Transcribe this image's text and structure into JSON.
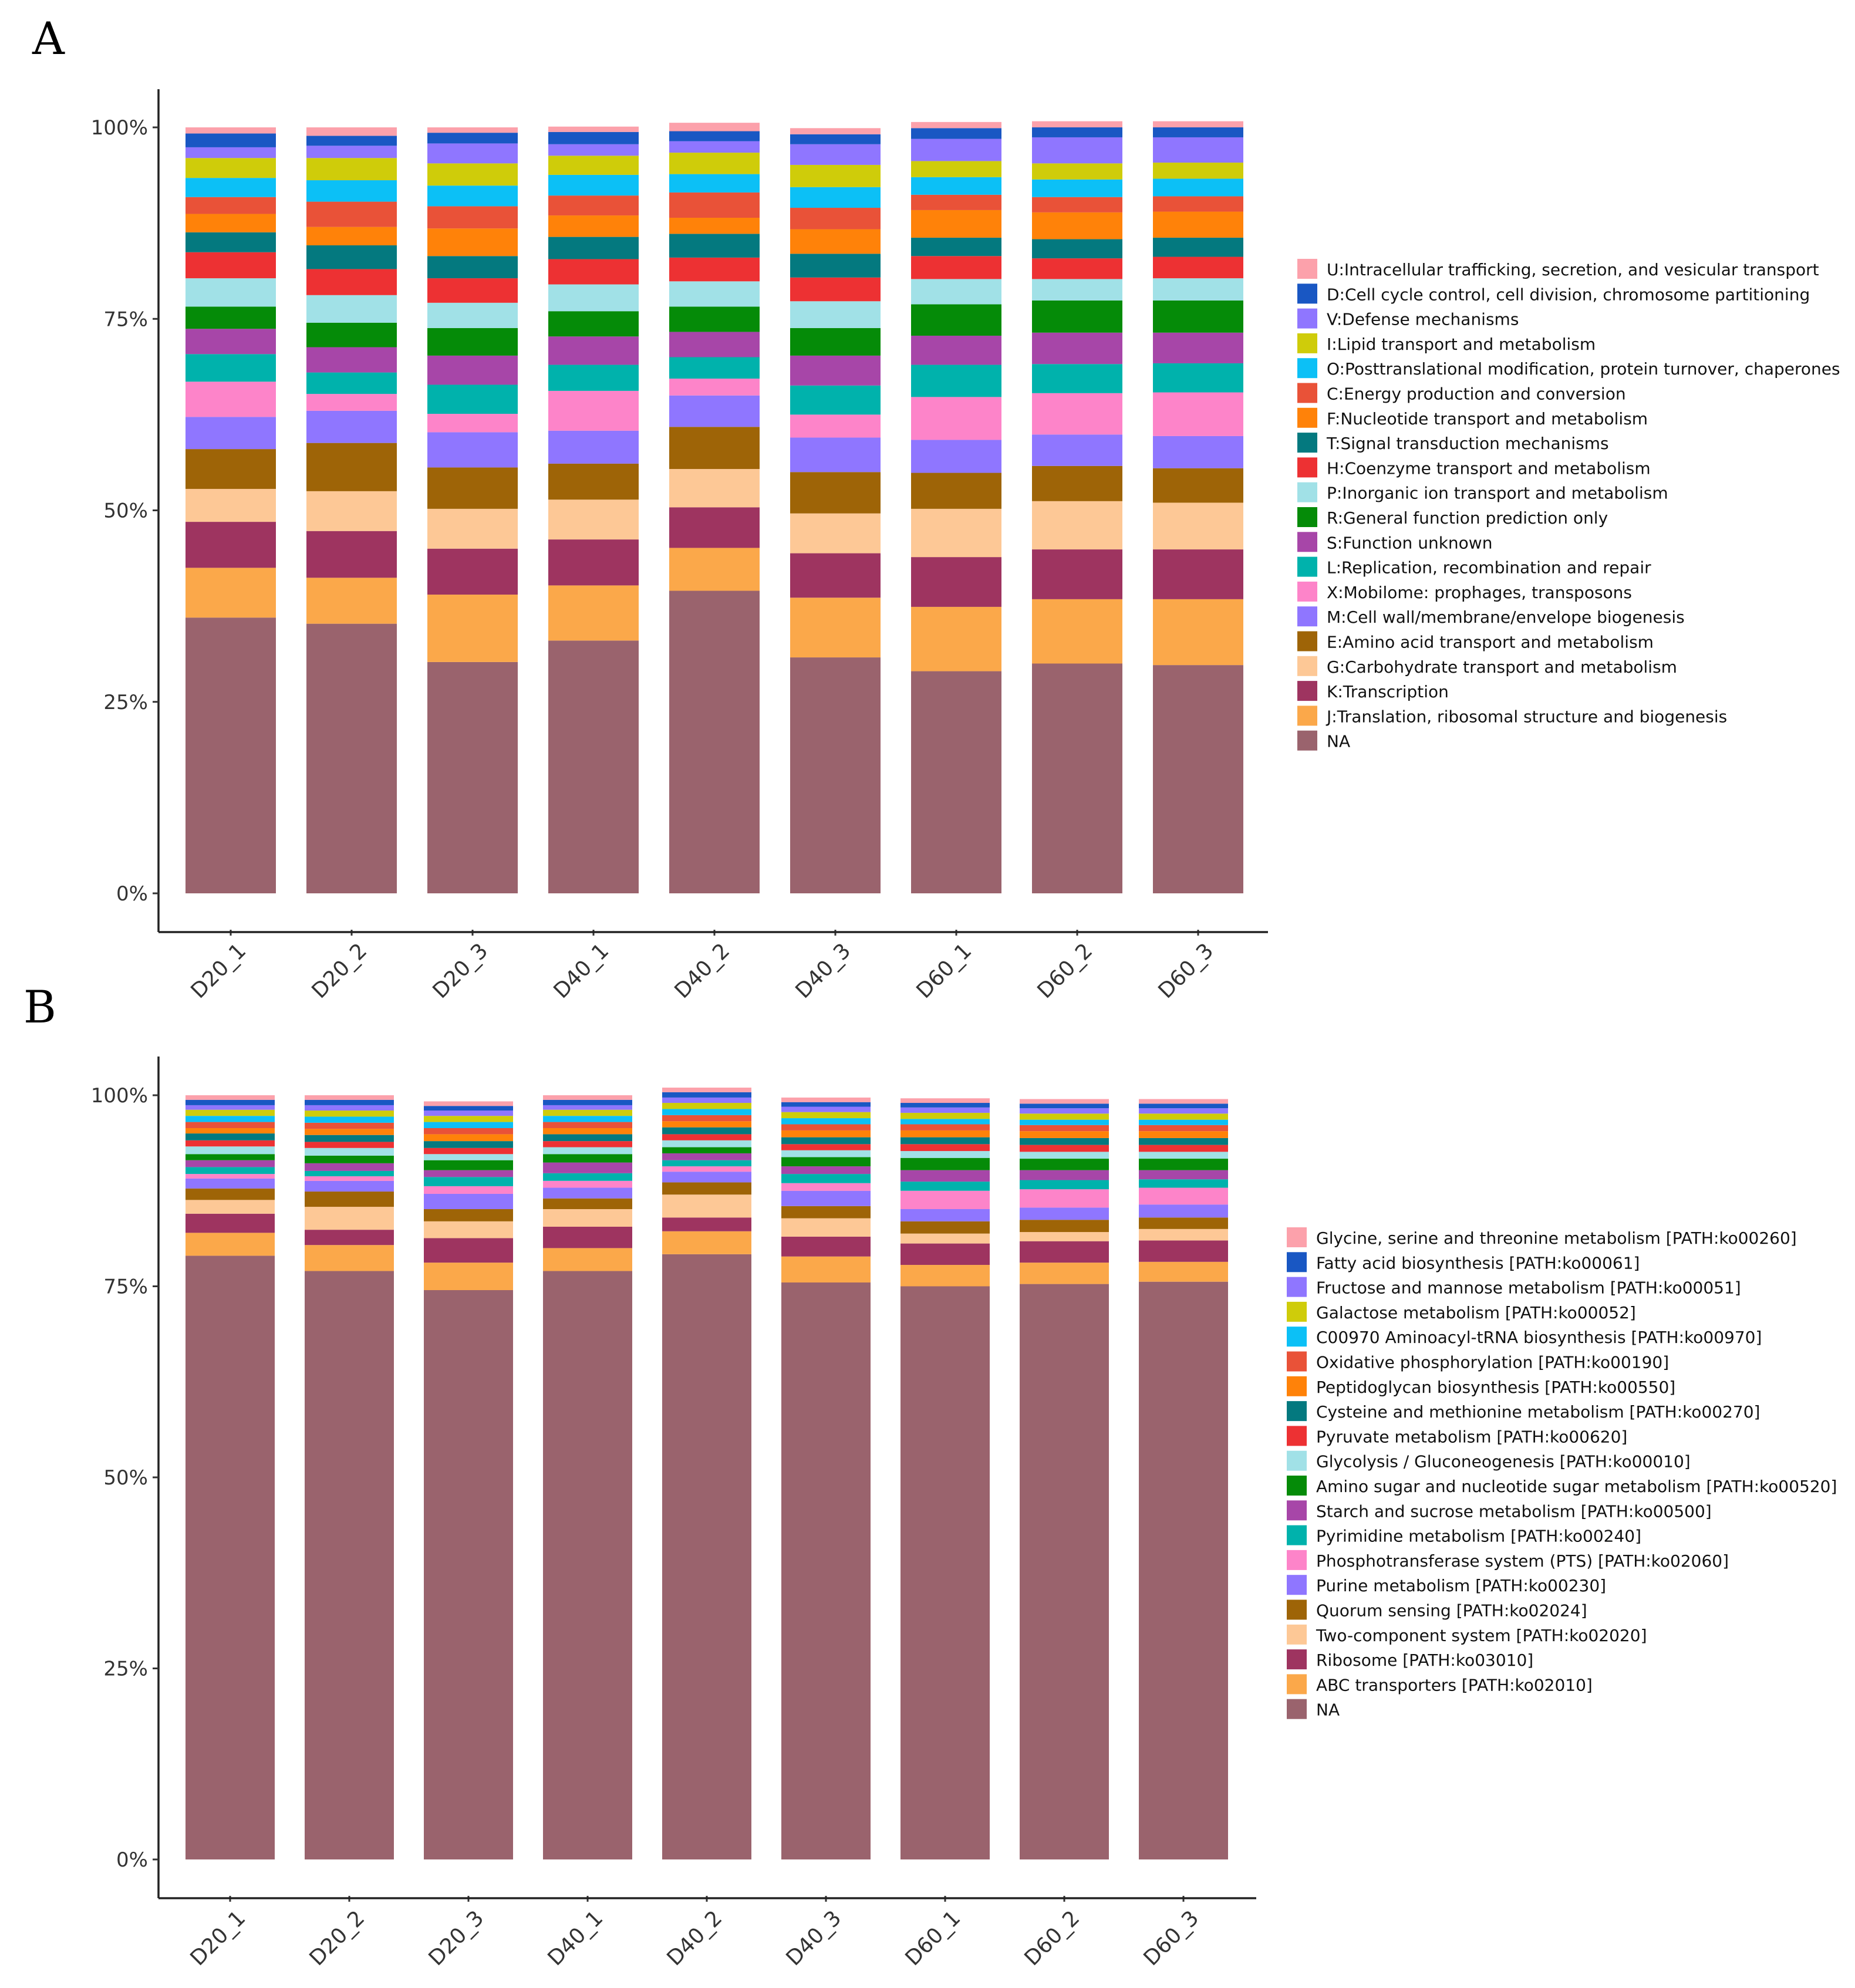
{
  "panels": [
    {
      "label": "A"
    },
    {
      "label": "B"
    }
  ],
  "chart_data": [
    {
      "type": "bar",
      "stacked": true,
      "panel": "A",
      "categories": [
        "D20_1",
        "D20_2",
        "D20_3",
        "D40_1",
        "D40_2",
        "D40_3",
        "D60_1",
        "D60_2",
        "D60_3"
      ],
      "yticks": [
        "0%",
        "25%",
        "50%",
        "75%",
        "100%"
      ],
      "ylim": [
        0,
        100
      ],
      "legend_placement": "right",
      "series": [
        {
          "name": "NA",
          "color": "#9a636d",
          "values": [
            36.0,
            35.2,
            30.2,
            33.0,
            39.5,
            30.8,
            29.0,
            30.0,
            29.8
          ]
        },
        {
          "name": "J:Translation, ribosomal structure and biogenesis",
          "color": "#fba84a",
          "values": [
            6.5,
            6.0,
            8.8,
            7.2,
            5.6,
            7.8,
            8.4,
            8.4,
            8.6
          ]
        },
        {
          "name": "K:Transcription",
          "color": "#9e3460",
          "values": [
            6.0,
            6.1,
            6.0,
            6.0,
            5.3,
            5.8,
            6.5,
            6.5,
            6.5
          ]
        },
        {
          "name": "G:Carbohydrate transport and metabolism",
          "color": "#fdc896",
          "values": [
            4.3,
            5.2,
            5.2,
            5.2,
            5.0,
            5.2,
            6.3,
            6.3,
            6.1
          ]
        },
        {
          "name": "E:Amino acid transport and metabolism",
          "color": "#9e6407",
          "values": [
            5.2,
            6.3,
            5.4,
            4.7,
            5.5,
            5.4,
            4.7,
            4.6,
            4.5
          ]
        },
        {
          "name": "M:Cell wall/membrane/envelope biogenesis",
          "color": "#8f76ff",
          "values": [
            4.2,
            4.2,
            4.6,
            4.3,
            4.1,
            4.5,
            4.3,
            4.1,
            4.2
          ]
        },
        {
          "name": "X:Mobilome: prophages, transposons",
          "color": "#fd84c9",
          "values": [
            4.6,
            2.2,
            2.4,
            5.2,
            2.2,
            3.0,
            5.6,
            5.4,
            5.7
          ]
        },
        {
          "name": "L:Replication, recombination and repair",
          "color": "#00b2ac",
          "values": [
            3.6,
            2.8,
            3.8,
            3.4,
            2.8,
            3.8,
            4.2,
            3.8,
            3.8
          ]
        },
        {
          "name": "S:Function unknown",
          "color": "#a746a8",
          "values": [
            3.3,
            3.3,
            3.8,
            3.7,
            3.3,
            3.9,
            3.8,
            4.1,
            4.0
          ]
        },
        {
          "name": "R:General function prediction only",
          "color": "#058b08",
          "values": [
            2.9,
            3.2,
            3.6,
            3.3,
            3.3,
            3.6,
            4.1,
            4.2,
            4.2
          ]
        },
        {
          "name": "P:Inorganic ion transport and metabolism",
          "color": "#a1e1e7",
          "values": [
            3.7,
            3.6,
            3.3,
            3.5,
            3.3,
            3.5,
            3.3,
            2.8,
            2.9
          ]
        },
        {
          "name": "H:Coenzyme transport and metabolism",
          "color": "#ed3133",
          "values": [
            3.4,
            3.4,
            3.2,
            3.3,
            3.1,
            3.1,
            3.0,
            2.7,
            2.8
          ]
        },
        {
          "name": "T:Signal transduction mechanisms",
          "color": "#04797f",
          "values": [
            2.6,
            3.1,
            2.9,
            2.9,
            3.1,
            3.1,
            2.4,
            2.5,
            2.5
          ]
        },
        {
          "name": "F:Nucleotide transport and metabolism",
          "color": "#ff8209",
          "values": [
            2.4,
            2.4,
            3.6,
            2.8,
            2.1,
            3.2,
            3.6,
            3.5,
            3.4
          ]
        },
        {
          "name": "C:Energy production and conversion",
          "color": "#e95238",
          "values": [
            2.2,
            3.3,
            2.9,
            2.6,
            3.3,
            2.8,
            2.0,
            2.0,
            2.0
          ]
        },
        {
          "name": "O:Posttranslational modification, protein turnover, chaperones",
          "color": "#0cc0f6",
          "values": [
            2.5,
            2.8,
            2.7,
            2.7,
            2.4,
            2.7,
            2.3,
            2.3,
            2.3
          ]
        },
        {
          "name": "I:Lipid transport and metabolism",
          "color": "#cfcc0a",
          "values": [
            2.6,
            2.9,
            2.9,
            2.5,
            2.8,
            2.9,
            2.1,
            2.1,
            2.1
          ]
        },
        {
          "name": "V:Defense mechanisms",
          "color": "#8f76ff",
          "values": [
            1.4,
            1.6,
            2.6,
            1.5,
            1.5,
            2.7,
            2.9,
            3.4,
            3.3
          ]
        },
        {
          "name": "D:Cell cycle control, cell division, chromosome partitioning",
          "color": "#1957c3",
          "values": [
            1.8,
            1.3,
            1.4,
            1.6,
            1.3,
            1.3,
            1.4,
            1.3,
            1.3
          ]
        },
        {
          "name": "U:Intracellular trafficking, secretion, and vesicular transport",
          "color": "#fca1ab",
          "values": [
            0.8,
            1.1,
            0.7,
            0.7,
            1.1,
            0.8,
            0.8,
            0.8,
            0.8
          ]
        }
      ]
    },
    {
      "type": "bar",
      "stacked": true,
      "panel": "B",
      "categories": [
        "D20_1",
        "D20_2",
        "D20_3",
        "D40_1",
        "D40_2",
        "D40_3",
        "D60_1",
        "D60_2",
        "D60_3"
      ],
      "yticks": [
        "0%",
        "25%",
        "50%",
        "75%",
        "100%"
      ],
      "ylim": [
        0,
        100
      ],
      "legend_placement": "right",
      "series": [
        {
          "name": "NA",
          "color": "#9a636d",
          "values": [
            79.0,
            77.0,
            74.5,
            77.0,
            79.2,
            75.5,
            75.0,
            75.3,
            75.6
          ]
        },
        {
          "name": "ABC transporters [PATH:ko02010]",
          "color": "#fba84a",
          "values": [
            3.0,
            3.4,
            3.6,
            3.0,
            3.0,
            3.4,
            2.8,
            2.8,
            2.6
          ]
        },
        {
          "name": "Ribosome [PATH:ko03010]",
          "color": "#9e3460",
          "values": [
            2.5,
            2.0,
            3.2,
            2.8,
            1.8,
            2.6,
            2.8,
            2.8,
            2.8
          ]
        },
        {
          "name": "Two-component system [PATH:ko02020]",
          "color": "#fdc896",
          "values": [
            1.8,
            3.0,
            2.2,
            2.3,
            3.0,
            2.4,
            1.3,
            1.2,
            1.5
          ]
        },
        {
          "name": "Quorum sensing [PATH:ko02024]",
          "color": "#9e6407",
          "values": [
            1.5,
            2.0,
            1.6,
            1.4,
            1.6,
            1.6,
            1.6,
            1.6,
            1.5
          ]
        },
        {
          "name": "Purine metabolism [PATH:ko00230]",
          "color": "#8f76ff",
          "values": [
            1.3,
            1.4,
            2.0,
            1.4,
            1.4,
            2.0,
            1.6,
            1.6,
            1.7
          ]
        },
        {
          "name": "Phosphotransferase system (PTS) [PATH:ko02060]",
          "color": "#fd84c9",
          "values": [
            0.6,
            0.6,
            1.0,
            0.9,
            0.7,
            1.0,
            2.4,
            2.4,
            2.2
          ]
        },
        {
          "name": "Pyrimidine metabolism [PATH:ko00240]",
          "color": "#00b2ac",
          "values": [
            0.9,
            0.7,
            1.2,
            1.0,
            0.8,
            1.2,
            1.2,
            1.2,
            1.1
          ]
        },
        {
          "name": "Starch and sucrose metabolism [PATH:ko00500]",
          "color": "#a746a8",
          "values": [
            0.9,
            1.0,
            0.9,
            1.4,
            0.9,
            1.0,
            1.5,
            1.3,
            1.2
          ]
        },
        {
          "name": "Amino sugar and nucleotide sugar metabolism [PATH:ko00520]",
          "color": "#058b08",
          "values": [
            0.8,
            1.0,
            1.3,
            1.1,
            0.8,
            1.2,
            1.6,
            1.5,
            1.5
          ]
        },
        {
          "name": "Glycolysis / Gluconeogenesis [PATH:ko00010]",
          "color": "#a1e1e7",
          "values": [
            1.0,
            1.0,
            0.8,
            0.9,
            0.9,
            0.9,
            0.9,
            0.9,
            0.9
          ]
        },
        {
          "name": "Pyruvate metabolism [PATH:ko00620]",
          "color": "#ed3133",
          "values": [
            0.8,
            0.8,
            0.8,
            0.8,
            0.8,
            0.8,
            0.9,
            0.9,
            0.9
          ]
        },
        {
          "name": "Cysteine and methionine metabolism [PATH:ko00270]",
          "color": "#04797f",
          "values": [
            0.9,
            0.9,
            0.9,
            0.9,
            0.9,
            0.9,
            0.9,
            0.9,
            0.9
          ]
        },
        {
          "name": "Peptidoglycan biosynthesis [PATH:ko00550]",
          "color": "#ff8209",
          "values": [
            0.7,
            0.8,
            0.9,
            0.8,
            0.8,
            0.9,
            0.9,
            0.9,
            0.9
          ]
        },
        {
          "name": "Oxidative phosphorylation [PATH:ko00190]",
          "color": "#e95238",
          "values": [
            0.8,
            0.8,
            0.8,
            0.8,
            0.8,
            0.8,
            0.8,
            0.8,
            0.8
          ]
        },
        {
          "name": "C00970 Aminoacyl-tRNA biosynthesis [PATH:ko00970]",
          "color": "#0cc0f6",
          "values": [
            0.8,
            0.8,
            0.8,
            0.8,
            0.8,
            0.8,
            0.7,
            0.7,
            0.7
          ]
        },
        {
          "name": "Galactose metabolism [PATH:ko00052]",
          "color": "#cfcc0a",
          "values": [
            0.8,
            0.8,
            0.8,
            0.8,
            0.8,
            0.8,
            0.8,
            0.8,
            0.8
          ]
        },
        {
          "name": "Fructose and mannose metabolism [PATH:ko00051]",
          "color": "#8f76ff",
          "values": [
            0.6,
            0.7,
            0.7,
            0.6,
            0.7,
            0.7,
            0.7,
            0.7,
            0.7
          ]
        },
        {
          "name": "Fatty acid biosynthesis [PATH:ko00061]",
          "color": "#1957c3",
          "values": [
            0.7,
            0.7,
            0.6,
            0.7,
            0.7,
            0.6,
            0.6,
            0.6,
            0.6
          ]
        },
        {
          "name": "Glycine, serine and threonine metabolism [PATH:ko00260]",
          "color": "#fca1ab",
          "values": [
            0.6,
            0.6,
            0.6,
            0.6,
            0.6,
            0.6,
            0.6,
            0.6,
            0.6
          ]
        }
      ]
    }
  ]
}
